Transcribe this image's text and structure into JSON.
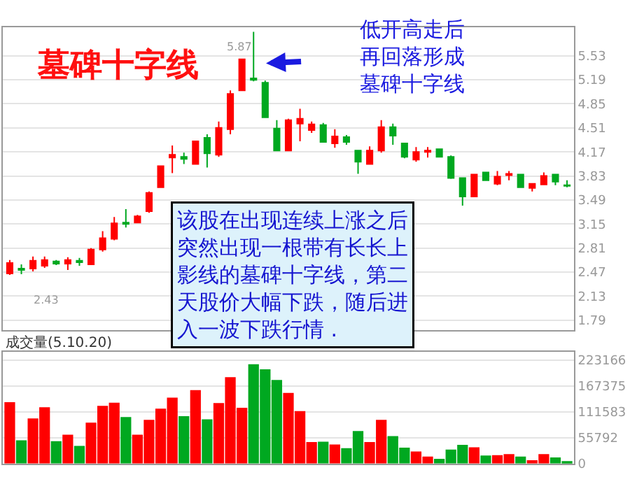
{
  "chart_data": [
    {
      "type": "candlestick",
      "title": "墓碑十字线",
      "categories": [
        null,
        null,
        null,
        null,
        null,
        null,
        null,
        null,
        null,
        null,
        null,
        null,
        null,
        null,
        null,
        null,
        null,
        null,
        null,
        null,
        null,
        null,
        null,
        null,
        null,
        null,
        null,
        null,
        null,
        null,
        null,
        null,
        null,
        null,
        null,
        null,
        null,
        null,
        null,
        null,
        null,
        null,
        null,
        null,
        null,
        null,
        null,
        null,
        null
      ],
      "ohlc": [
        [
          2.45,
          2.64,
          2.43,
          2.6
        ],
        [
          2.52,
          2.58,
          2.44,
          2.5
        ],
        [
          2.52,
          2.69,
          2.48,
          2.63
        ],
        [
          2.56,
          2.69,
          2.53,
          2.64
        ],
        [
          2.62,
          2.64,
          2.57,
          2.59
        ],
        [
          2.59,
          2.68,
          2.5,
          2.64
        ],
        [
          2.63,
          2.67,
          2.56,
          2.61
        ],
        [
          2.58,
          2.81,
          2.57,
          2.79
        ],
        [
          2.79,
          3.05,
          2.76,
          2.95
        ],
        [
          2.94,
          3.25,
          2.92,
          3.16
        ],
        [
          3.17,
          3.36,
          3.1,
          3.15
        ],
        [
          3.17,
          3.28,
          3.16,
          3.26
        ],
        [
          3.33,
          3.61,
          3.31,
          3.59
        ],
        [
          3.67,
          3.98,
          3.66,
          3.97
        ],
        [
          4.09,
          4.26,
          3.87,
          4.13
        ],
        [
          4.1,
          4.16,
          4.0,
          4.07
        ],
        [
          4.0,
          4.33,
          3.99,
          4.32
        ],
        [
          4.37,
          4.42,
          3.95,
          4.15
        ],
        [
          4.13,
          4.6,
          4.1,
          4.51
        ],
        [
          4.49,
          5.04,
          4.42,
          4.99
        ],
        [
          5.04,
          5.49,
          5.03,
          5.48
        ],
        [
          5.21,
          5.87,
          5.17,
          5.19
        ],
        [
          5.15,
          5.18,
          4.66,
          4.66
        ],
        [
          4.5,
          4.62,
          4.19,
          4.19
        ],
        [
          4.19,
          4.64,
          4.19,
          4.62
        ],
        [
          4.57,
          4.78,
          4.32,
          4.64
        ],
        [
          4.48,
          4.6,
          4.44,
          4.56
        ],
        [
          4.55,
          4.58,
          4.3,
          4.31
        ],
        [
          4.29,
          4.49,
          4.23,
          4.39
        ],
        [
          4.38,
          4.41,
          4.27,
          4.31
        ],
        [
          4.19,
          4.2,
          3.86,
          4.03
        ],
        [
          4.0,
          4.25,
          3.99,
          4.19
        ],
        [
          4.19,
          4.62,
          4.16,
          4.52
        ],
        [
          4.52,
          4.57,
          4.27,
          4.4
        ],
        [
          4.29,
          4.3,
          4.08,
          4.1
        ],
        [
          4.06,
          4.24,
          4.03,
          4.17
        ],
        [
          4.17,
          4.24,
          4.09,
          4.19
        ],
        [
          4.21,
          4.22,
          4.09,
          4.1
        ],
        [
          4.1,
          4.12,
          3.79,
          3.8
        ],
        [
          3.8,
          3.8,
          3.41,
          3.54
        ],
        [
          3.54,
          3.86,
          3.53,
          3.85
        ],
        [
          3.88,
          3.89,
          3.76,
          3.77
        ],
        [
          3.72,
          3.9,
          3.7,
          3.82
        ],
        [
          3.84,
          3.9,
          3.77,
          3.86
        ],
        [
          3.85,
          3.86,
          3.66,
          3.67
        ],
        [
          3.66,
          3.73,
          3.61,
          3.72
        ],
        [
          3.71,
          3.88,
          3.7,
          3.83
        ],
        [
          3.85,
          3.86,
          3.7,
          3.75
        ],
        [
          3.7,
          3.77,
          3.67,
          3.69
        ]
      ],
      "colors": [
        "#ff0000",
        "#00a820",
        "#ff0000",
        "#ff0000",
        "#00a820",
        "#ff0000",
        "#00a820",
        "#ff0000",
        "#ff0000",
        "#ff0000",
        "#00a820",
        "#ff0000",
        "#ff0000",
        "#ff0000",
        "#ff0000",
        "#00a820",
        "#ff0000",
        "#00a820",
        "#ff0000",
        "#ff0000",
        "#ff0000",
        "#00a820",
        "#00a820",
        "#00a820",
        "#ff0000",
        "#ff0000",
        "#ff0000",
        "#00a820",
        "#ff0000",
        "#00a820",
        "#00a820",
        "#ff0000",
        "#ff0000",
        "#00a820",
        "#00a820",
        "#ff0000",
        "#ff0000",
        "#00a820",
        "#00a820",
        "#00a820",
        "#ff0000",
        "#00a820",
        "#ff0000",
        "#ff0000",
        "#00a820",
        "#ff0000",
        "#ff0000",
        "#00a820",
        "#00a820"
      ],
      "ylim": [
        1.65,
        5.93
      ],
      "yticks": [
        1.79,
        2.13,
        2.47,
        2.81,
        3.15,
        3.49,
        3.83,
        4.17,
        4.51,
        4.85,
        5.19,
        5.53
      ],
      "grid": "y",
      "tick_labels": "y",
      "annotations": [
        "低开高走后再回落形成墓碑十字线",
        "该股在出现连续上涨之后突然出现一根带有长长上影线的墓碑十字线，第二天股价大幅下跌，随后进入一波下跌行情 .",
        "5.87",
        "2.43"
      ]
    },
    {
      "type": "bar",
      "title": "成交量(5.10.20)",
      "categories": [
        null,
        null,
        null,
        null,
        null,
        null,
        null,
        null,
        null,
        null,
        null,
        null,
        null,
        null,
        null,
        null,
        null,
        null,
        null,
        null,
        null,
        null,
        null,
        null,
        null,
        null,
        null,
        null,
        null,
        null,
        null,
        null,
        null,
        null,
        null,
        null,
        null,
        null,
        null,
        null,
        null,
        null,
        null,
        null,
        null,
        null,
        null,
        null,
        null
      ],
      "values": [
        132000,
        50000,
        97000,
        121000,
        48000,
        62000,
        38000,
        88000,
        124000,
        131000,
        100000,
        62000,
        94000,
        118000,
        142000,
        102000,
        158000,
        95000,
        130000,
        186000,
        120000,
        214000,
        203000,
        180000,
        152000,
        113000,
        46000,
        47000,
        41000,
        33000,
        70000,
        46000,
        94000,
        59000,
        34000,
        26000,
        15000,
        10000,
        30000,
        40000,
        35000,
        17000,
        18000,
        20000,
        15000,
        7000,
        20000,
        13000,
        5000
      ],
      "colors": [
        "#ff0000",
        "#00a820",
        "#ff0000",
        "#ff0000",
        "#00a820",
        "#ff0000",
        "#00a820",
        "#ff0000",
        "#ff0000",
        "#ff0000",
        "#00a820",
        "#ff0000",
        "#ff0000",
        "#ff0000",
        "#ff0000",
        "#00a820",
        "#ff0000",
        "#00a820",
        "#ff0000",
        "#ff0000",
        "#ff0000",
        "#00a820",
        "#00a820",
        "#00a820",
        "#ff0000",
        "#ff0000",
        "#ff0000",
        "#00a820",
        "#ff0000",
        "#00a820",
        "#00a820",
        "#ff0000",
        "#ff0000",
        "#00a820",
        "#00a820",
        "#ff0000",
        "#ff0000",
        "#00a820",
        "#00a820",
        "#00a820",
        "#ff0000",
        "#00a820",
        "#ff0000",
        "#ff0000",
        "#00a820",
        "#ff0000",
        "#ff0000",
        "#00a820",
        "#00a820"
      ],
      "ylim": [
        0,
        240000
      ],
      "yticks": [
        0,
        55792,
        111583,
        167375,
        223166
      ],
      "grid": "y",
      "tick_labels": "y"
    }
  ]
}
